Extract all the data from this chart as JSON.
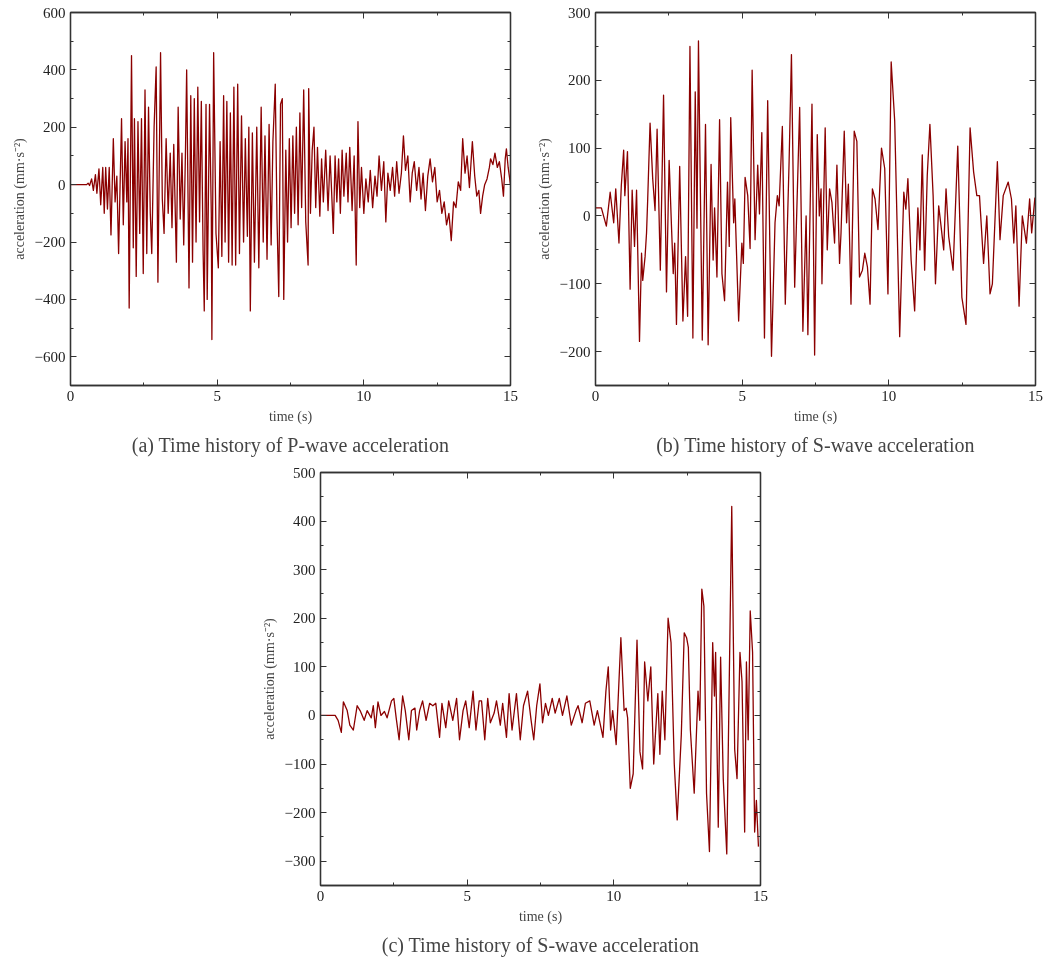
{
  "chart_data": [
    {
      "type": "line",
      "title": "(a) Time history of P-wave acceleration",
      "xlabel": "time (s)",
      "ylabel": "acceleration (mm·s⁻²)",
      "grid": false,
      "line_style": "solid",
      "xlim": [
        0,
        15
      ],
      "xticks": [
        0,
        {
          "value": 2.5,
          "label": null
        },
        5,
        {
          "value": 7.5,
          "label": null
        },
        10,
        {
          "value": 12.5,
          "label": null
        },
        15
      ],
      "ylim": [
        -700,
        600
      ],
      "yticks": [
        -600,
        {
          "value": -500,
          "label": null
        },
        -400,
        {
          "value": -300,
          "label": null
        },
        -200,
        {
          "value": -100,
          "label": null
        },
        0,
        {
          "value": 100,
          "label": null
        },
        200,
        {
          "value": 300,
          "label": null
        },
        400,
        {
          "value": 500,
          "label": null
        },
        600
      ],
      "series": [
        {
          "color": "#8b0000",
          "x": [
            0,
            0.55,
            0.6,
            0.65,
            0.72,
            0.78,
            0.85,
            0.9,
            0.97,
            1.03,
            1.1,
            1.15,
            1.2,
            1.26,
            1.32,
            1.38,
            1.46,
            1.52,
            1.58,
            1.64,
            1.74,
            1.8,
            1.86,
            1.92,
            1.96,
            2.0,
            2.08,
            2.14,
            2.18,
            2.24,
            2.3,
            2.36,
            2.42,
            2.48,
            2.54,
            2.6,
            2.66,
            2.72,
            2.77,
            2.85,
            2.92,
            2.98,
            3.07,
            3.13,
            3.19,
            3.26,
            3.33,
            3.4,
            3.46,
            3.52,
            3.61,
            3.67,
            3.74,
            3.8,
            3.86,
            3.92,
            3.96,
            4.04,
            4.1,
            4.16,
            4.22,
            4.28,
            4.34,
            4.4,
            4.46,
            4.52,
            4.56,
            4.62,
            4.66,
            4.74,
            4.8,
            4.82,
            4.88,
            4.96,
            5.04,
            5.1,
            5.16,
            5.22,
            5.27,
            5.33,
            5.39,
            5.45,
            5.51,
            5.57,
            5.63,
            5.7,
            5.76,
            5.83,
            5.9,
            5.96,
            6.03,
            6.08,
            6.13,
            6.2,
            6.27,
            6.35,
            6.42,
            6.5,
            6.57,
            6.63,
            6.7,
            6.77,
            6.84,
            6.9,
            6.98,
            7.04,
            7.1,
            7.16,
            7.22,
            7.27,
            7.34,
            7.4,
            7.46,
            7.52,
            7.58,
            7.64,
            7.7,
            7.76,
            7.82,
            7.88,
            7.95,
            8.02,
            8.1,
            8.12,
            8.18,
            8.24,
            8.3,
            8.36,
            8.42,
            8.5,
            8.56,
            8.62,
            8.7,
            8.78,
            8.85,
            8.9,
            8.96,
            9.02,
            9.08,
            9.14,
            9.2,
            9.26,
            9.32,
            9.4,
            9.46,
            9.52,
            9.6,
            9.67,
            9.74,
            9.8,
            9.86,
            9.92,
            10.0,
            10.07,
            10.15,
            10.22,
            10.3,
            10.38,
            10.45,
            10.52,
            10.6,
            10.68,
            10.75,
            10.82,
            10.9,
            10.98,
            11.05,
            11.12,
            11.2,
            11.28,
            11.35,
            11.42,
            11.5,
            11.58,
            11.65,
            11.72,
            11.8,
            11.88,
            11.95,
            12.02,
            12.1,
            12.18,
            12.26,
            12.34,
            12.42,
            12.5,
            12.58,
            12.66,
            12.74,
            12.82,
            12.9,
            12.98,
            13.06,
            13.14,
            13.22,
            13.3,
            13.37,
            13.45,
            13.52,
            13.6,
            13.7,
            13.78,
            13.85,
            13.92,
            13.98,
            14.05,
            14.12,
            14.2,
            14.28,
            14.32,
            14.4,
            14.47,
            14.55,
            14.62,
            14.7,
            14.76,
            14.82,
            14.86,
            14.92,
            15.0
          ],
          "values": [
            0,
            0,
            5,
            -3,
            20,
            -20,
            35,
            -30,
            55,
            -70,
            60,
            -100,
            60,
            -85,
            60,
            -175,
            160,
            -60,
            30,
            -240,
            230,
            -140,
            150,
            -60,
            160,
            -430,
            450,
            -220,
            230,
            -320,
            220,
            -170,
            230,
            -310,
            330,
            -240,
            270,
            -100,
            -240,
            200,
            410,
            -340,
            460,
            -50,
            -170,
            160,
            -100,
            110,
            -150,
            140,
            -270,
            270,
            -120,
            110,
            -210,
            120,
            400,
            -360,
            310,
            -270,
            300,
            -200,
            340,
            -130,
            290,
            -230,
            -440,
            280,
            -400,
            280,
            -100,
            -540,
            460,
            -170,
            -290,
            150,
            -250,
            310,
            -200,
            290,
            -270,
            250,
            -280,
            340,
            -280,
            350,
            -240,
            240,
            -200,
            160,
            -180,
            200,
            -440,
            180,
            -270,
            200,
            -290,
            270,
            -200,
            170,
            -260,
            210,
            -210,
            150,
            350,
            -120,
            -390,
            280,
            300,
            -400,
            120,
            -200,
            160,
            -150,
            170,
            -100,
            200,
            -140,
            250,
            -80,
            330,
            -130,
            -280,
            335,
            -100,
            120,
            200,
            -80,
            130,
            -110,
            90,
            -60,
            120,
            -90,
            100,
            -20,
            -170,
            100,
            -60,
            90,
            -100,
            120,
            -40,
            110,
            -60,
            130,
            -90,
            100,
            -280,
            220,
            -80,
            60,
            -100,
            20,
            -60,
            50,
            -80,
            30,
            -40,
            100,
            -20,
            80,
            -130,
            40,
            -20,
            60,
            -40,
            80,
            -30,
            40,
            170,
            50,
            100,
            -60,
            40,
            80,
            -20,
            60,
            -50,
            40,
            -90,
            30,
            90,
            10,
            60,
            -60,
            -20,
            -100,
            -60,
            -140,
            -100,
            -195,
            -60,
            -80,
            10,
            -20,
            160,
            40,
            100,
            -10,
            150,
            30,
            -40,
            -20,
            -100,
            -40,
            0,
            20,
            60,
            90,
            70,
            110,
            60,
            80,
            20,
            -40,
            90,
            125,
            60,
            0
          ]
        }
      ]
    },
    {
      "type": "line",
      "title": "(b) Time history of S-wave acceleration",
      "xlabel": "time (s)",
      "ylabel": "acceleration (mm·s⁻²)",
      "grid": false,
      "line_style": "solid",
      "xlim": [
        0,
        15
      ],
      "xticks": [
        0,
        {
          "value": 2.5,
          "label": null
        },
        5,
        {
          "value": 7.5,
          "label": null
        },
        10,
        {
          "value": 12.5,
          "label": null
        },
        15
      ],
      "ylim": [
        -250,
        300
      ],
      "yticks": [
        -200,
        {
          "value": -150,
          "label": null
        },
        -100,
        {
          "value": -50,
          "label": null
        },
        0,
        {
          "value": 50,
          "label": null
        },
        100,
        {
          "value": 150,
          "label": null
        },
        200,
        {
          "value": 250,
          "label": null
        },
        300
      ],
      "series": [
        {
          "color": "#8b0000",
          "x": [
            0,
            0.2,
            0.37,
            0.5,
            0.62,
            0.69,
            0.8,
            0.88,
            0.96,
            1.0,
            1.09,
            1.18,
            1.25,
            1.33,
            1.4,
            1.5,
            1.57,
            1.61,
            1.69,
            1.74,
            1.78,
            1.86,
            1.95,
            2.03,
            2.1,
            2.21,
            2.32,
            2.42,
            2.51,
            2.59,
            2.65,
            2.7,
            2.76,
            2.87,
            2.98,
            3.07,
            3.14,
            3.22,
            3.32,
            3.4,
            3.46,
            3.51,
            3.64,
            3.75,
            3.84,
            3.94,
            4.01,
            4.06,
            4.14,
            4.23,
            4.31,
            4.4,
            4.5,
            4.56,
            4.61,
            4.71,
            4.75,
            4.88,
            4.99,
            5.04,
            5.1,
            5.19,
            5.27,
            5.34,
            5.44,
            5.53,
            5.59,
            5.67,
            5.76,
            5.87,
            6.0,
            6.12,
            6.2,
            6.26,
            6.37,
            6.47,
            6.6,
            6.68,
            6.79,
            6.96,
            7.07,
            7.18,
            7.24,
            7.38,
            7.47,
            7.56,
            7.63,
            7.69,
            7.72,
            7.83,
            7.9,
            7.98,
            8.06,
            8.15,
            8.23,
            8.32,
            8.37,
            8.48,
            8.56,
            8.62,
            8.71,
            8.82,
            8.91,
            9.0,
            9.1,
            9.18,
            9.27,
            9.36,
            9.44,
            9.53,
            9.63,
            9.75,
            9.86,
            9.97,
            10.08,
            10.2,
            10.37,
            10.51,
            10.58,
            10.65,
            10.76,
            10.88,
            10.99,
            11.06,
            11.14,
            11.22,
            11.31,
            11.4,
            11.51,
            11.59,
            11.7,
            11.78,
            11.87,
            11.95,
            12.04,
            12.19,
            12.35,
            12.49,
            12.63,
            12.77,
            12.89,
            13.0,
            13.09,
            13.23,
            13.34,
            13.45,
            13.53,
            13.7,
            13.79,
            13.9,
            14.07,
            14.18,
            14.26,
            14.33,
            14.44,
            14.55,
            14.69,
            14.8,
            14.87,
            14.98
          ],
          "values": [
            12,
            12,
            -15,
            35,
            -10,
            40,
            -40,
            45,
            97,
            30,
            95,
            -108,
            38,
            -45,
            38,
            -185,
            -55,
            -95,
            -60,
            -25,
            25,
            137,
            55,
            8,
            128,
            -80,
            178,
            -112,
            82,
            -15,
            -85,
            -40,
            -160,
            73,
            -155,
            -60,
            -148,
            250,
            -180,
            183,
            -18,
            258,
            -183,
            135,
            -190,
            76,
            -65,
            12,
            -90,
            142,
            -85,
            -125,
            50,
            -45,
            145,
            -10,
            25,
            -155,
            -40,
            -70,
            57,
            30,
            -48,
            215,
            -35,
            75,
            3,
            123,
            -180,
            170,
            -207,
            -10,
            30,
            15,
            132,
            -130,
            80,
            238,
            -105,
            160,
            -170,
            0,
            -175,
            165,
            -205,
            120,
            0,
            40,
            -100,
            130,
            -50,
            40,
            20,
            -40,
            75,
            -70,
            -25,
            125,
            -10,
            47,
            -130,
            125,
            110,
            -90,
            -80,
            -55,
            -75,
            -130,
            40,
            25,
            -20,
            100,
            70,
            -115,
            227,
            140,
            -178,
            35,
            10,
            55,
            -65,
            -140,
            12,
            -50,
            90,
            -80,
            60,
            135,
            30,
            -100,
            15,
            -15,
            -50,
            40,
            -30,
            -80,
            103,
            -120,
            -160,
            130,
            65,
            30,
            30,
            -70,
            0,
            -115,
            -100,
            80,
            -35,
            30,
            50,
            25,
            -40,
            15,
            -133,
            0,
            -40,
            25,
            -25,
            27
          ]
        }
      ]
    },
    {
      "type": "line",
      "title": "(c) Time history of S-wave acceleration",
      "xlabel": "time (s)",
      "ylabel": "acceleration (mm·s⁻²)",
      "grid": false,
      "line_style": "solid",
      "xlim": [
        0,
        15
      ],
      "xticks": [
        0,
        {
          "value": 2.5,
          "label": null
        },
        5,
        {
          "value": 7.5,
          "label": null
        },
        10,
        {
          "value": 12.5,
          "label": null
        },
        15
      ],
      "ylim": [
        -350,
        500
      ],
      "yticks": [
        {
          "value": -350,
          "label": null
        },
        -300,
        {
          "value": -250,
          "label": null
        },
        -200,
        {
          "value": -150,
          "label": null
        },
        -100,
        {
          "value": -50,
          "label": null
        },
        0,
        {
          "value": 50,
          "label": null
        },
        100,
        {
          "value": 150,
          "label": null
        },
        200,
        {
          "value": 250,
          "label": null
        },
        300,
        {
          "value": 350,
          "label": null
        },
        400,
        {
          "value": 450,
          "label": null
        },
        500
      ],
      "series": [
        {
          "color": "#8b0000",
          "x": [
            0,
            0.5,
            0.6,
            0.71,
            0.78,
            0.91,
            1.0,
            1.12,
            1.25,
            1.35,
            1.49,
            1.59,
            1.73,
            1.8,
            1.87,
            1.96,
            2.06,
            2.18,
            2.27,
            2.42,
            2.5,
            2.58,
            2.68,
            2.8,
            2.89,
            3.01,
            3.1,
            3.22,
            3.28,
            3.38,
            3.48,
            3.6,
            3.72,
            3.83,
            3.93,
            4.06,
            4.14,
            4.27,
            4.37,
            4.51,
            4.64,
            4.74,
            4.86,
            4.95,
            5.07,
            5.2,
            5.3,
            5.41,
            5.49,
            5.6,
            5.7,
            5.79,
            5.92,
            6.0,
            6.13,
            6.21,
            6.34,
            6.43,
            6.53,
            6.68,
            6.81,
            6.92,
            7.06,
            7.18,
            7.27,
            7.37,
            7.48,
            7.57,
            7.67,
            7.77,
            7.9,
            8.0,
            8.14,
            8.25,
            8.4,
            8.55,
            8.71,
            8.78,
            8.92,
            9.03,
            9.18,
            9.33,
            9.44,
            9.63,
            9.73,
            9.81,
            9.89,
            9.96,
            10.08,
            10.24,
            10.35,
            10.42,
            10.47,
            10.56,
            10.66,
            10.79,
            10.89,
            10.98,
            11.05,
            11.16,
            11.26,
            11.36,
            11.5,
            11.57,
            11.65,
            11.74,
            11.85,
            11.95,
            12.06,
            12.16,
            12.3,
            12.4,
            12.48,
            12.54,
            12.61,
            12.74,
            12.87,
            12.93,
            13.0,
            13.07,
            13.16,
            13.26,
            13.37,
            13.43,
            13.47,
            13.56,
            13.64,
            13.73,
            13.85,
            14.02,
            14.12,
            14.2,
            14.3,
            14.37,
            14.46,
            14.52,
            14.58,
            14.65,
            14.73,
            14.8,
            14.86,
            14.93
          ],
          "values": [
            0,
            0,
            -10,
            -35,
            28,
            10,
            -20,
            -30,
            20,
            10,
            -10,
            10,
            -5,
            20,
            -25,
            28,
            0,
            8,
            -5,
            30,
            35,
            -5,
            -50,
            40,
            10,
            -50,
            10,
            15,
            -30,
            10,
            30,
            -10,
            25,
            20,
            25,
            -45,
            25,
            -25,
            30,
            -10,
            35,
            -50,
            10,
            30,
            -25,
            50,
            -30,
            30,
            30,
            -50,
            35,
            -15,
            5,
            30,
            -20,
            25,
            -45,
            45,
            -30,
            45,
            -50,
            20,
            50,
            -10,
            -50,
            20,
            65,
            -15,
            25,
            0,
            35,
            5,
            35,
            0,
            40,
            -20,
            10,
            20,
            -15,
            25,
            30,
            -20,
            10,
            -45,
            50,
            100,
            -30,
            10,
            -60,
            160,
            10,
            15,
            -5,
            -150,
            -120,
            155,
            -75,
            -110,
            110,
            30,
            100,
            -100,
            45,
            -80,
            50,
            -50,
            200,
            150,
            -100,
            -215,
            -40,
            170,
            160,
            140,
            -30,
            -160,
            50,
            -10,
            260,
            225,
            -160,
            -280,
            150,
            40,
            130,
            -230,
            120,
            -130,
            -285,
            430,
            -70,
            -130,
            130,
            70,
            -240,
            110,
            -50,
            215,
            130,
            -240,
            -175,
            -270
          ]
        }
      ]
    }
  ]
}
